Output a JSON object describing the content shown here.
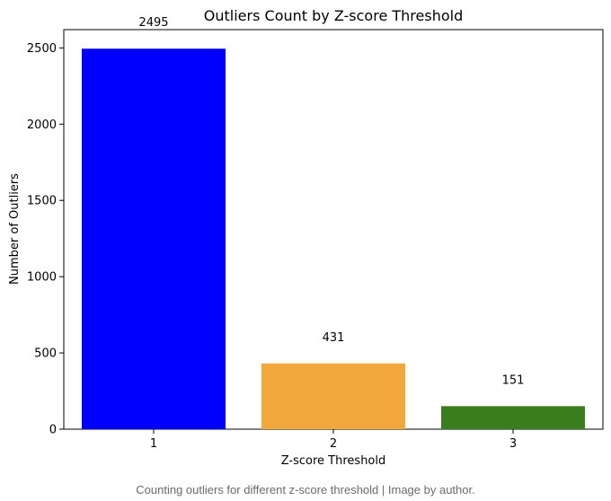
{
  "chart_data": {
    "type": "bar",
    "title": "Outliers Count by Z-score Threshold",
    "xlabel": "Z-score Threshold",
    "ylabel": "Number of Outliers",
    "categories": [
      "1",
      "2",
      "3"
    ],
    "values": [
      2495,
      431,
      151
    ],
    "data_labels": [
      "2495",
      "431",
      "151"
    ],
    "colors": [
      "#0000ff",
      "#f0a93a",
      "#3a7d1e"
    ],
    "ylim": [
      0,
      2620
    ],
    "yticks": [
      0,
      500,
      1000,
      1500,
      2000,
      2500
    ],
    "ytick_labels": [
      "0",
      "500",
      "1000",
      "1500",
      "2000",
      "2500"
    ],
    "grid": false,
    "legend": "none"
  },
  "caption": "Counting outliers for different z-score threshold | Image by author."
}
